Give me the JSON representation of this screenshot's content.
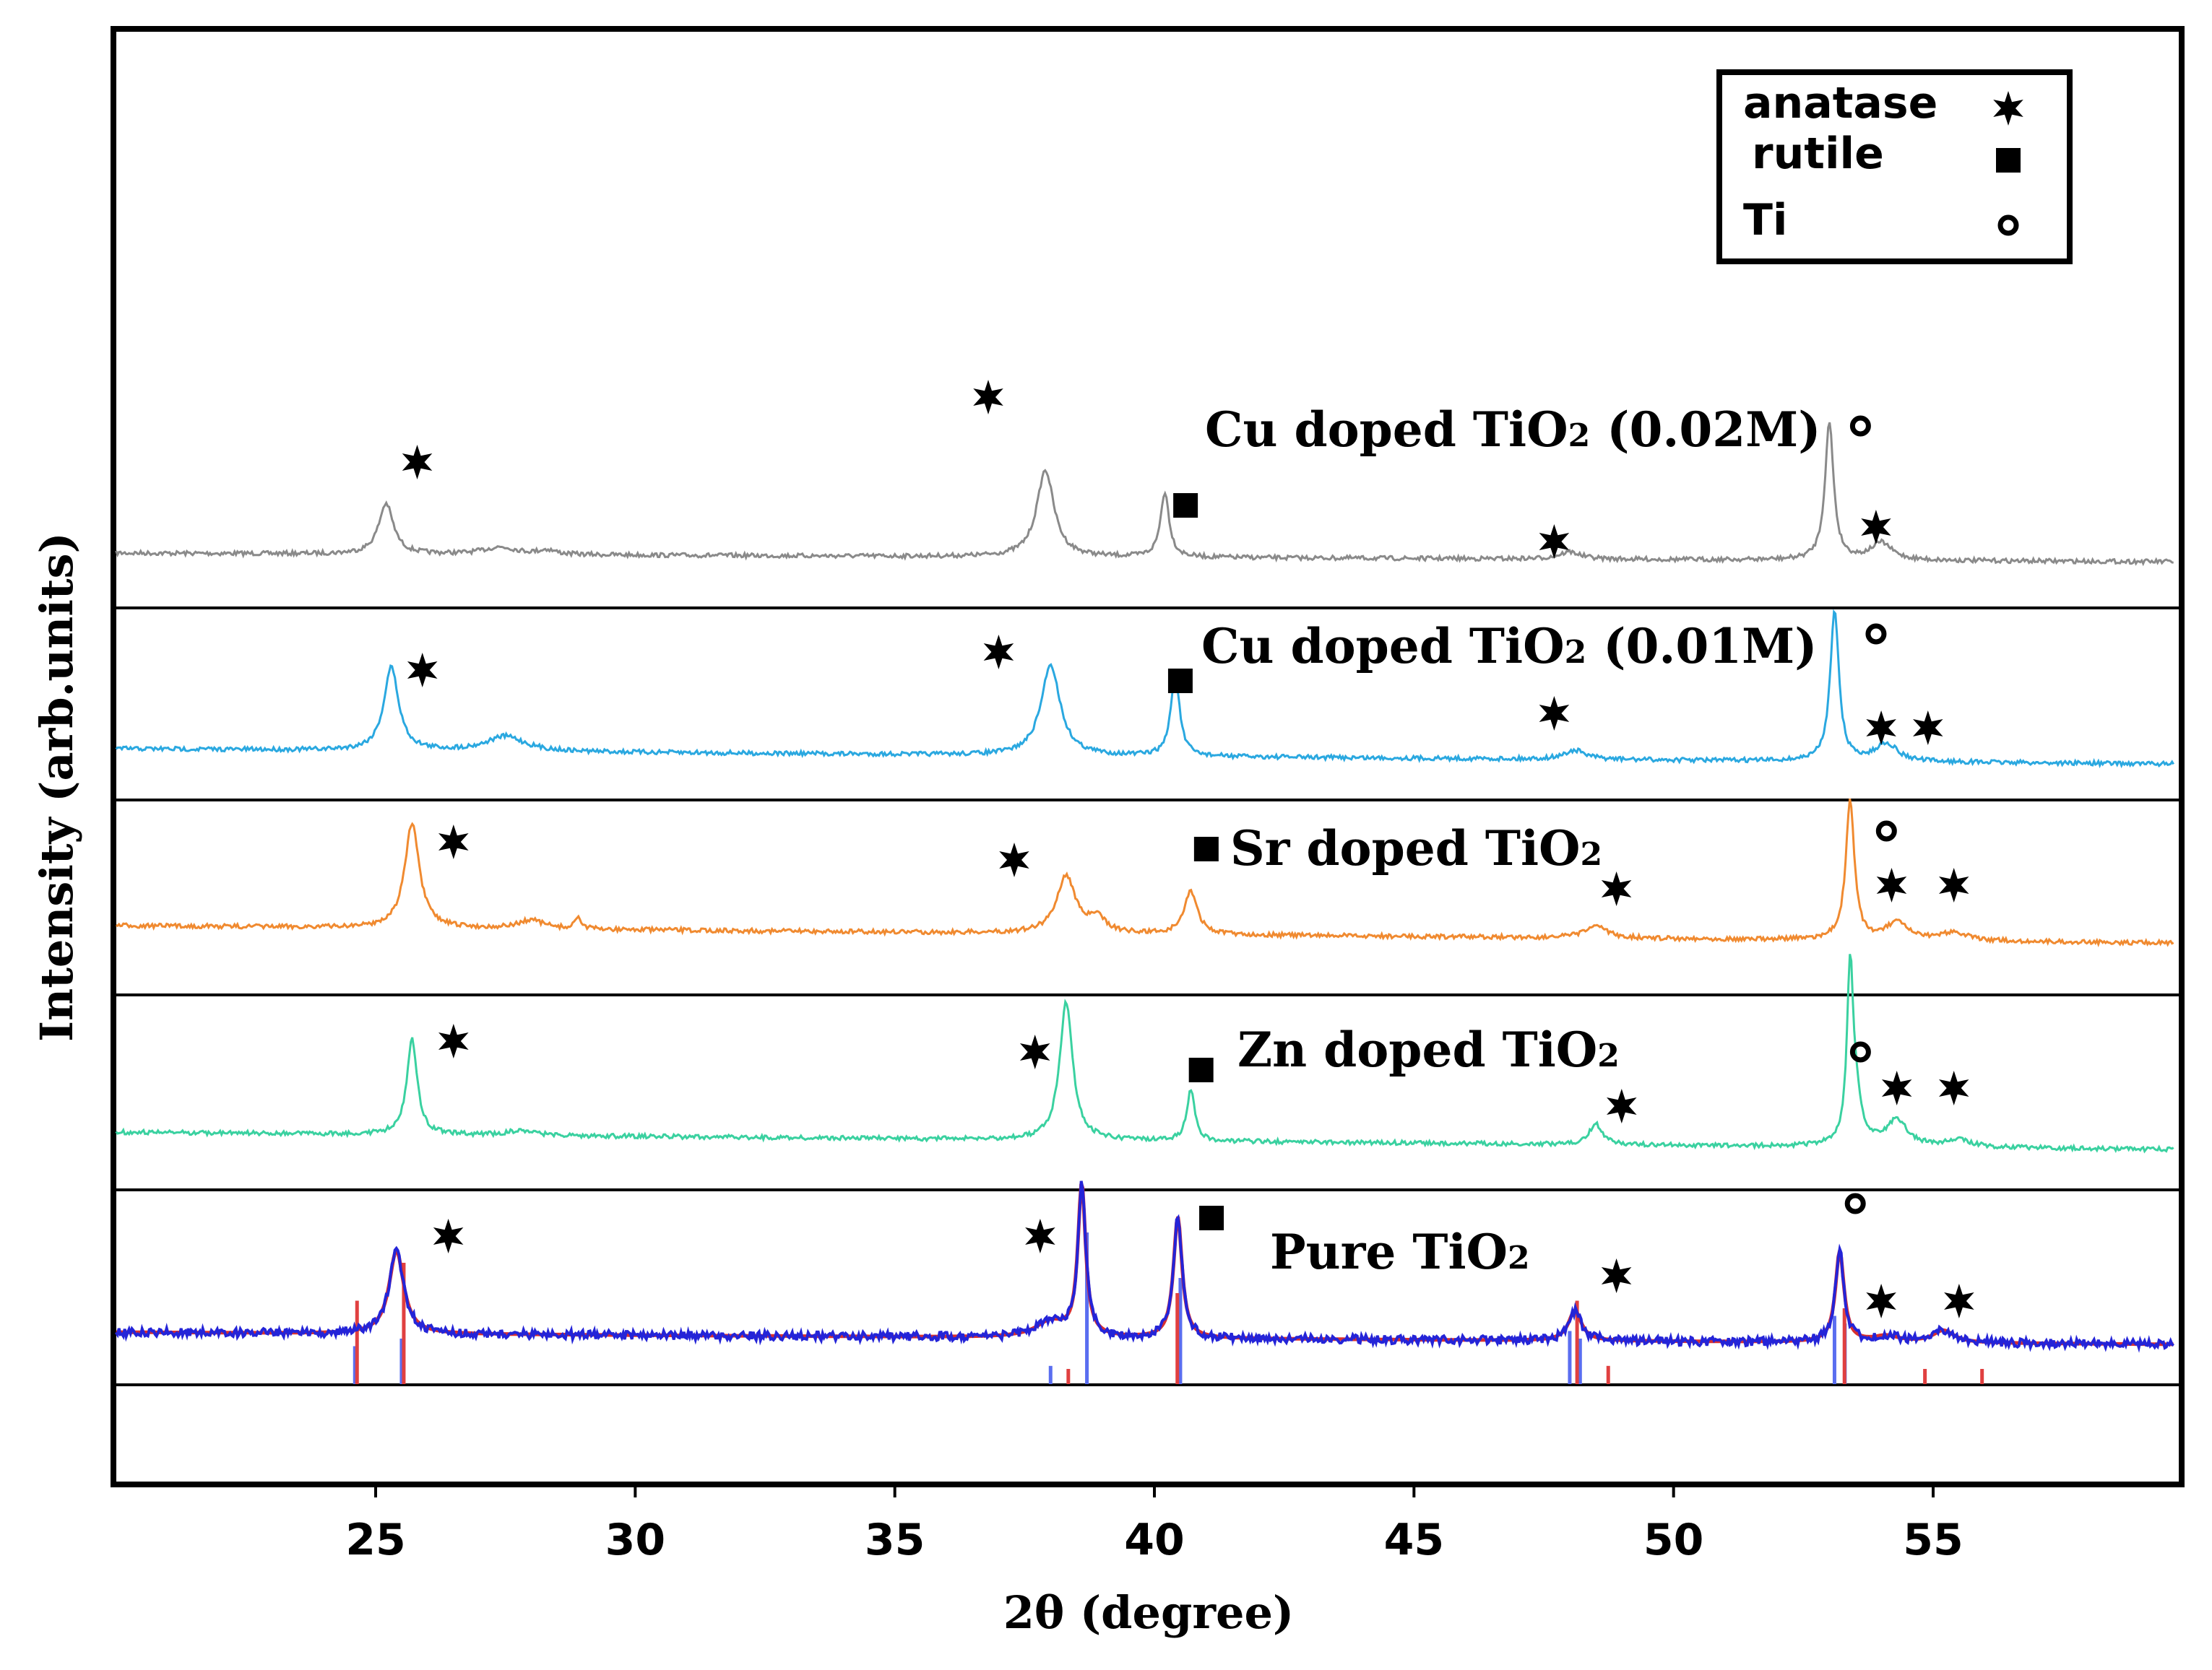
{
  "chart_data": {
    "type": "line",
    "title": "",
    "xlabel": "2θ (degree)",
    "ylabel": "Intensity (arb.units)",
    "xlim": [
      20,
      59.5
    ],
    "x_ticks": [
      "25",
      "30",
      "35",
      "40",
      "45",
      "50",
      "55"
    ],
    "x_tick_values": [
      25,
      30,
      35,
      40,
      45,
      50,
      55
    ],
    "legend": {
      "placement": "top-right",
      "entries": [
        {
          "label": "anatase",
          "marker": "star"
        },
        {
          "label": "rutile",
          "marker": "square"
        },
        {
          "label": "Ti",
          "marker": "circle"
        }
      ]
    },
    "series": [
      {
        "name": "Cu doped TiO2 (0.02M)",
        "label_main": "Cu doped TiO",
        "label_sub": "2",
        "label_tail": " (0.02M)",
        "color": "#8a8a8a",
        "baseline": [
          0.12,
          0.06
        ],
        "peaks": [
          [
            25.2,
            0.35,
            0.17
          ],
          [
            27.4,
            0.05,
            0.4
          ],
          [
            28.3,
            0.03,
            0.2
          ],
          [
            37.9,
            0.6,
            0.2
          ],
          [
            40.2,
            0.45,
            0.1
          ],
          [
            48.0,
            0.05,
            0.25
          ],
          [
            53.0,
            0.95,
            0.1
          ],
          [
            54.0,
            0.12,
            0.25
          ]
        ],
        "markers": [
          {
            "type": "star",
            "x": 25.8
          },
          {
            "type": "star",
            "x": 36.8
          },
          {
            "type": "square",
            "x": 40.6
          },
          {
            "type": "star",
            "x": 47.7
          },
          {
            "type": "circle",
            "x": 53.6
          },
          {
            "type": "star",
            "x": 53.9
          }
        ]
      },
      {
        "name": "Cu doped TiO2 (0.01M)",
        "label_main": "Cu doped TiO",
        "label_sub": "2",
        "label_tail": " (0.01M)",
        "color": "#2aa8e0",
        "baseline": [
          0.1,
          0.0
        ],
        "peaks": [
          [
            25.3,
            0.55,
            0.17
          ],
          [
            27.5,
            0.1,
            0.45
          ],
          [
            38.0,
            0.6,
            0.22
          ],
          [
            40.4,
            0.55,
            0.1
          ],
          [
            48.1,
            0.06,
            0.25
          ],
          [
            53.1,
            1.0,
            0.1
          ],
          [
            54.1,
            0.12,
            0.25
          ]
        ],
        "markers": [
          {
            "type": "star",
            "x": 25.9
          },
          {
            "type": "star",
            "x": 37.0
          },
          {
            "type": "square",
            "x": 40.5
          },
          {
            "type": "star",
            "x": 47.7
          },
          {
            "type": "circle",
            "x": 53.9
          },
          {
            "type": "star",
            "x": 54.0
          },
          {
            "type": "star",
            "x": 54.9
          }
        ]
      },
      {
        "name": "Sr doped TiO2",
        "label_main": "Sr doped TiO",
        "label_sub": "2",
        "label_tail": "",
        "color": "#f08a30",
        "baseline": [
          0.1,
          0.0
        ],
        "peaks": [
          [
            25.7,
            0.6,
            0.17
          ],
          [
            28.0,
            0.05,
            0.3
          ],
          [
            28.9,
            0.07,
            0.07
          ],
          [
            38.3,
            0.33,
            0.22
          ],
          [
            38.9,
            0.08,
            0.2
          ],
          [
            40.7,
            0.25,
            0.15
          ],
          [
            48.5,
            0.07,
            0.25
          ],
          [
            53.4,
            0.8,
            0.1
          ],
          [
            54.3,
            0.1,
            0.25
          ],
          [
            55.4,
            0.05,
            0.3
          ]
        ],
        "markers": [
          {
            "type": "star",
            "x": 26.5
          },
          {
            "type": "star",
            "x": 37.3
          },
          {
            "type": "square",
            "x": 41.0
          },
          {
            "type": "star",
            "x": 48.9
          },
          {
            "type": "circle",
            "x": 54.1
          },
          {
            "type": "star",
            "x": 54.2
          },
          {
            "type": "star",
            "x": 55.4
          }
        ]
      },
      {
        "name": "Zn doped TiO2",
        "label_main": "Zn doped TiO",
        "label_sub": "2",
        "label_tail": "",
        "color": "#3ad1a0",
        "baseline": [
          0.1,
          0.0
        ],
        "peaks": [
          [
            25.7,
            0.55,
            0.12
          ],
          [
            27.8,
            0.03,
            0.3
          ],
          [
            38.3,
            0.8,
            0.15
          ],
          [
            40.7,
            0.3,
            0.09
          ],
          [
            48.5,
            0.12,
            0.15
          ],
          [
            53.4,
            0.95,
            0.07
          ],
          [
            53.5,
            0.25,
            0.14
          ],
          [
            54.3,
            0.15,
            0.25
          ],
          [
            55.5,
            0.04,
            0.3
          ]
        ],
        "markers": [
          {
            "type": "star",
            "x": 26.5
          },
          {
            "type": "star",
            "x": 37.7
          },
          {
            "type": "square",
            "x": 40.9
          },
          {
            "type": "star",
            "x": 49.0
          },
          {
            "type": "circle",
            "x": 53.6
          },
          {
            "type": "star",
            "x": 54.3
          },
          {
            "type": "star",
            "x": 55.4
          }
        ]
      },
      {
        "name": "Pure TiO2",
        "label_main": "Pure TiO",
        "label_sub": "2",
        "label_tail": "",
        "color": "#2424d8",
        "fit_color": "#d83030",
        "baseline": [
          0.08,
          0.0
        ],
        "peaks": [
          [
            25.4,
            0.55,
            0.17
          ],
          [
            38.0,
            0.1,
            0.35
          ],
          [
            38.6,
            1.0,
            0.09
          ],
          [
            40.45,
            0.8,
            0.1
          ],
          [
            48.1,
            0.2,
            0.15
          ],
          [
            53.2,
            0.6,
            0.1
          ],
          [
            54.1,
            0.04,
            0.3
          ],
          [
            55.2,
            0.08,
            0.25
          ]
        ],
        "ref_lines_blue": [
          [
            24.6,
            0.25
          ],
          [
            25.5,
            0.3
          ],
          [
            38.0,
            0.12
          ],
          [
            38.7,
            1.0
          ],
          [
            40.5,
            0.7
          ],
          [
            48.0,
            0.35
          ],
          [
            48.2,
            0.3
          ],
          [
            53.1,
            0.45
          ],
          [
            53.3,
            0.4
          ]
        ],
        "ref_lines_red": [
          [
            24.6,
            0.55
          ],
          [
            25.5,
            0.8
          ],
          [
            38.3,
            0.1
          ],
          [
            40.4,
            0.6
          ],
          [
            48.1,
            0.55
          ],
          [
            48.7,
            0.12
          ],
          [
            53.25,
            0.5
          ],
          [
            54.8,
            0.1
          ],
          [
            55.9,
            0.1
          ]
        ],
        "markers": [
          {
            "type": "star",
            "x": 26.4
          },
          {
            "type": "star",
            "x": 37.8
          },
          {
            "type": "square",
            "x": 41.1
          },
          {
            "type": "star",
            "x": 48.9
          },
          {
            "type": "circle",
            "x": 53.5
          },
          {
            "type": "star",
            "x": 54.0
          },
          {
            "type": "star",
            "x": 55.5
          }
        ]
      }
    ]
  }
}
